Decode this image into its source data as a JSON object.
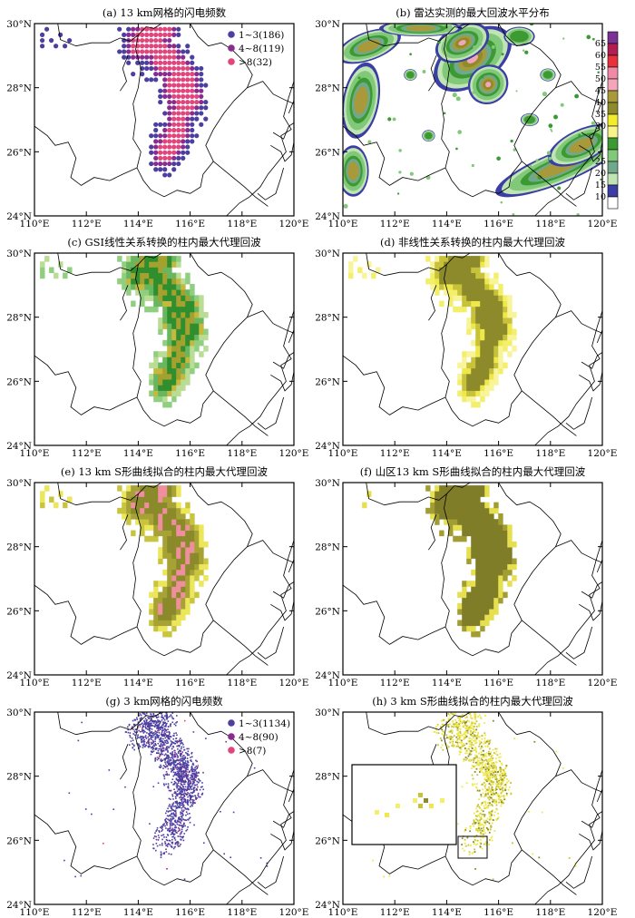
{
  "figure": {
    "x_ticks": [
      "110°E",
      "112°E",
      "114°E",
      "116°E",
      "118°E",
      "120°E"
    ],
    "y_ticks": [
      "30°N",
      "28°N",
      "26°N",
      "24°N"
    ],
    "xlim": [
      110,
      120
    ],
    "ylim": [
      24,
      30
    ]
  },
  "panels": [
    {
      "id": "a",
      "title": "(a) 13 km网格的闪电频数",
      "legend": [
        {
          "label": "1~3(186)",
          "color": "#4b3fa0"
        },
        {
          "label": "4~8(119)",
          "color": "#8a2b8f"
        },
        {
          "label": ">8(32)",
          "color": "#e2447c"
        }
      ]
    },
    {
      "id": "b",
      "title": "(b) 雷达实测的最大回波水平分布"
    },
    {
      "id": "c",
      "title": "(c) GSI线性关系转换的柱内最大代理回波"
    },
    {
      "id": "d",
      "title": "(d) 非线性关系转换的柱内最大代理回波"
    },
    {
      "id": "e",
      "title": "(e) 13 km S形曲线拟合的柱内最大代理回波"
    },
    {
      "id": "f",
      "title": "(f) 山区13 km S形曲线拟合的柱内最大代理回波"
    },
    {
      "id": "g",
      "title": "(g) 3 km网格的闪电频数",
      "legend": [
        {
          "label": "1~3(1134)",
          "color": "#4b3fa0"
        },
        {
          "label": "4~8(90)",
          "color": "#8a2b8f"
        },
        {
          "label": ">8(7)",
          "color": "#e2447c"
        }
      ]
    },
    {
      "id": "h",
      "title": "(h) 3 km S形曲线拟合的柱内最大代理回波"
    }
  ],
  "colorbar": {
    "labels": [
      "65",
      "60",
      "55",
      "50",
      "45",
      "40",
      "35",
      "30",
      "25",
      "20",
      "15",
      "10"
    ],
    "colors": [
      "#7b3294",
      "#b11e54",
      "#e8313a",
      "#f08aa6",
      "#f4a6b8",
      "#a89a3a",
      "#8d8b2a",
      "#f2ec2a",
      "#f7f58a",
      "#3b9a32",
      "#82c87a",
      "#6fa88b",
      "#c0e4b4",
      "#3b3fa5",
      "#ffffff"
    ]
  },
  "chart_data": {
    "type": "heatmap",
    "description_units": "lon/lat degrees",
    "lightning_13km_counts": {
      "1~3": 186,
      "4~8": 119,
      ">8": 32
    },
    "lightning_3km_counts": {
      "1~3": 1134,
      "4~8": 90,
      ">8": 7
    },
    "echo_colorbar_dbz": [
      10,
      15,
      20,
      25,
      30,
      35,
      40,
      45,
      50,
      55,
      60,
      65
    ]
  }
}
